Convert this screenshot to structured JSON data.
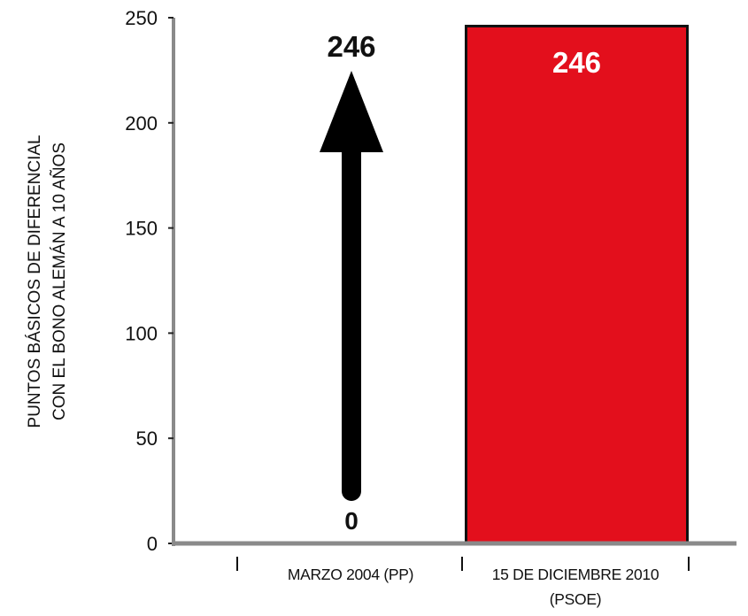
{
  "chart_data": {
    "type": "bar",
    "title": "",
    "ylabel_lines": [
      "PUNTOS BÁSICOS DE DIFERENCIAL",
      "CON EL BONO ALEMÁN A 10 AÑOS"
    ],
    "xlabel": "",
    "ylim": [
      0,
      250
    ],
    "yticks": [
      0,
      50,
      100,
      150,
      200,
      250
    ],
    "categories": [
      {
        "lines": [
          "MARZO 2004 (PP)"
        ]
      },
      {
        "lines": [
          "15 DE DICIEMBRE 2010",
          "(PSOE)"
        ]
      }
    ],
    "values": [
      0,
      246
    ],
    "data_labels": [
      "0",
      "246"
    ],
    "arrow_label": "246",
    "colors": {
      "axis": "#8a8a8a",
      "bar_highlight": "#e30f1c",
      "bar_border": "#111111",
      "arrow": "#000000",
      "label_dark": "#111111",
      "label_light": "#ffffff"
    },
    "grid": false,
    "legend": "none"
  }
}
